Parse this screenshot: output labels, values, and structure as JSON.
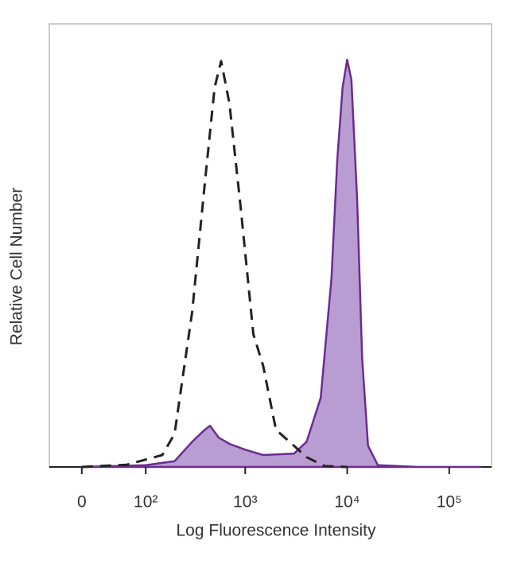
{
  "chart_data": {
    "type": "histogram-overlay",
    "x_label": "Log Fluorescence Intensity",
    "y_label": "Relative Cell Number",
    "xscale": "biexponential",
    "xlim": [
      -40,
      260000
    ],
    "ylim": [
      0,
      100
    ],
    "xticks": [
      0,
      {
        "value": 100,
        "label": "10²"
      },
      {
        "value": 1000,
        "label": "10³"
      },
      {
        "value": 10000,
        "label": "10⁴"
      },
      {
        "value": 100000,
        "label": "10⁵"
      }
    ],
    "series": [
      {
        "color": "#222222",
        "style": "dashed",
        "x": [
          0,
          60,
          150,
          200,
          300,
          400,
          500,
          580,
          700,
          900,
          1200,
          1500,
          2000,
          3000,
          4000,
          6000,
          10000
        ],
        "values": [
          0,
          0.5,
          2.7,
          7.5,
          35,
          64,
          85.6,
          91.6,
          82,
          58.7,
          30,
          22.8,
          8.4,
          4.8,
          2.2,
          0.2,
          0
        ]
      },
      {
        "color": "#6a2c91",
        "fill": "#b99dd2",
        "style": "filled",
        "x": [
          0,
          100,
          200,
          300,
          400,
          450,
          550,
          700,
          1000,
          1500,
          3000,
          4000,
          5500,
          7000,
          8000,
          9000,
          10000,
          11000,
          12500,
          14000,
          16000,
          20000,
          50000,
          200000
        ],
        "values": [
          0,
          0.4,
          1.3,
          5.7,
          8.4,
          9.3,
          6.6,
          5.2,
          3.9,
          2.7,
          3,
          5.7,
          15.6,
          42.5,
          69.5,
          85.6,
          91.9,
          87.4,
          60.5,
          24.6,
          4.8,
          0.4,
          0,
          0
        ]
      }
    ]
  }
}
